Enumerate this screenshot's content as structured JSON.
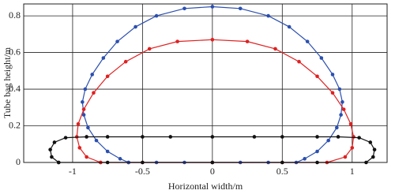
{
  "chart_data": {
    "type": "line",
    "x_label": "Horizontal width/m",
    "y_label": "Tube bag height/m",
    "xlim": [
      -1.35,
      1.25
    ],
    "ylim": [
      0,
      0.865
    ],
    "xticks": [
      -1,
      -0.5,
      0,
      0.5,
      1
    ],
    "yticks": [
      0,
      0.2,
      0.4,
      0.6,
      0.8
    ],
    "grid": true,
    "series": [
      {
        "color": "#2b4fb0",
        "x": [
          -0.6,
          -0.66,
          -0.75,
          -0.83,
          -0.89,
          -0.92,
          -0.93,
          -0.91,
          -0.86,
          -0.78,
          -0.68,
          -0.55,
          -0.4,
          -0.2,
          0,
          0.2,
          0.4,
          0.55,
          0.68,
          0.78,
          0.86,
          0.91,
          0.93,
          0.92,
          0.89,
          0.83,
          0.75,
          0.66,
          0.6,
          0.4,
          0.2,
          0,
          -0.2,
          -0.4,
          -0.6
        ],
        "y": [
          0,
          0.02,
          0.06,
          0.12,
          0.19,
          0.26,
          0.33,
          0.4,
          0.48,
          0.57,
          0.66,
          0.74,
          0.8,
          0.84,
          0.85,
          0.84,
          0.8,
          0.74,
          0.66,
          0.57,
          0.48,
          0.4,
          0.33,
          0.26,
          0.19,
          0.12,
          0.06,
          0.02,
          0,
          0,
          0,
          0,
          0,
          0,
          0
        ]
      },
      {
        "color": "#e02020",
        "x": [
          -0.8,
          -0.9,
          -0.95,
          -0.97,
          -0.96,
          -0.92,
          -0.85,
          -0.75,
          -0.62,
          -0.45,
          -0.25,
          0,
          0.25,
          0.45,
          0.62,
          0.75,
          0.86,
          0.94,
          0.99,
          1.01,
          1.0,
          0.95,
          0.82,
          0.5,
          0,
          -0.5,
          -0.8
        ],
        "y": [
          0,
          0.03,
          0.08,
          0.14,
          0.21,
          0.29,
          0.38,
          0.47,
          0.55,
          0.62,
          0.66,
          0.67,
          0.66,
          0.62,
          0.55,
          0.47,
          0.38,
          0.29,
          0.21,
          0.14,
          0.08,
          0.03,
          0,
          0,
          0,
          0,
          0
        ]
      },
      {
        "color": "#111111",
        "x": [
          -1.1,
          -1.15,
          -1.16,
          -1.13,
          -1.05,
          -0.9,
          -0.75,
          -0.5,
          -0.3,
          0,
          0.3,
          0.5,
          0.75,
          0.9,
          1.05,
          1.13,
          1.16,
          1.15,
          1.1,
          0.75,
          0.5,
          0,
          -0.5,
          -0.75,
          -1.1
        ],
        "y": [
          0,
          0.03,
          0.07,
          0.11,
          0.135,
          0.14,
          0.14,
          0.14,
          0.14,
          0.14,
          0.14,
          0.14,
          0.14,
          0.14,
          0.135,
          0.11,
          0.07,
          0.03,
          0,
          0,
          0,
          0,
          0,
          0,
          0
        ]
      }
    ]
  }
}
